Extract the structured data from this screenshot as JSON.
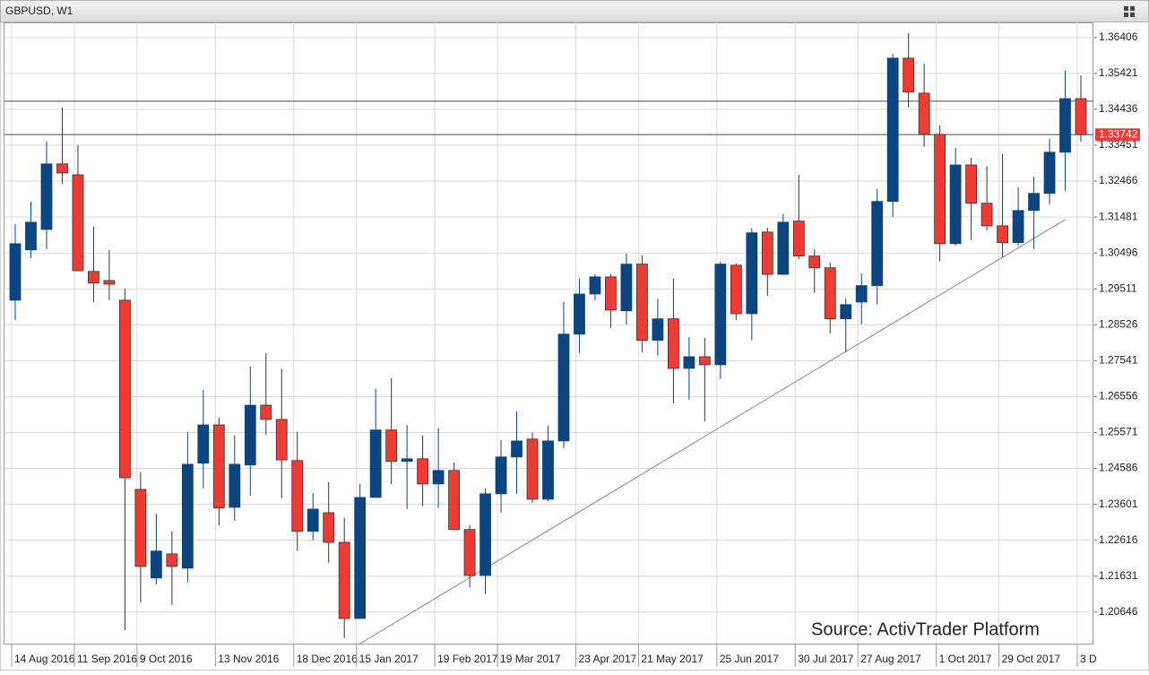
{
  "chart_data": {
    "type": "candlestick",
    "title": "GBPUSD, W1",
    "annotation": "Source: ActivTrader Platform",
    "categories": [
      "14 Aug 2016",
      null,
      null,
      null,
      "11 Sep 2016",
      null,
      null,
      null,
      "9 Oct 2016",
      null,
      null,
      null,
      null,
      "13 Nov 2016",
      null,
      null,
      null,
      null,
      "18 Dec 2016",
      null,
      null,
      null,
      "15 Jan 2017",
      null,
      null,
      null,
      null,
      "19 Feb 2017",
      null,
      null,
      null,
      "19 Mar 2017",
      null,
      null,
      null,
      null,
      "23 Apr 2017",
      null,
      null,
      null,
      "21 May 2017",
      null,
      null,
      null,
      null,
      "25 Jun 2017",
      null,
      null,
      null,
      null,
      "30 Jul 2017",
      null,
      null,
      null,
      "27 Aug 2017",
      null,
      null,
      null,
      null,
      "1 Oct 2017",
      null,
      null,
      null,
      "29 Oct 2017",
      null,
      null,
      null,
      null,
      "3 D"
    ],
    "open": [
      1.292,
      1.3058,
      1.3114,
      1.3294,
      1.3264,
      1.2999,
      1.2974,
      1.292,
      1.2401,
      1.2158,
      1.2224,
      1.2185,
      1.2473,
      1.2578,
      1.2352,
      1.2468,
      1.2632,
      1.2593,
      1.248,
      1.2286,
      1.2337,
      1.2256,
      1.2047,
      1.2379,
      1.2564,
      1.2478,
      1.2485,
      1.2416,
      1.2453,
      1.2291,
      1.2165,
      1.2389,
      1.249,
      1.2539,
      1.2374,
      1.2534,
      1.2827,
      1.2937,
      1.2984,
      1.2891,
      1.3019,
      1.281,
      1.2869,
      1.2733,
      1.2765,
      1.2743,
      1.3016,
      1.2883,
      1.3107,
      1.2991,
      1.3137,
      1.3041,
      1.3009,
      1.2869,
      1.2915,
      1.296,
      1.3191,
      1.3584,
      1.3488,
      1.3375,
      1.3075,
      1.3291,
      1.3186,
      1.3124,
      1.3078,
      1.3166,
      1.3213,
      1.3326,
      1.3473
    ],
    "high": [
      1.3129,
      1.3191,
      1.3355,
      1.3449,
      1.3346,
      1.3122,
      1.3058,
      1.2952,
      1.2448,
      1.2335,
      1.2286,
      1.2559,
      1.2674,
      1.2598,
      1.2549,
      1.2738,
      1.2775,
      1.2731,
      1.2559,
      1.2391,
      1.2421,
      1.2323,
      1.2416,
      1.2677,
      1.2706,
      1.2578,
      1.2549,
      1.2569,
      1.2475,
      1.2303,
      1.2404,
      1.2537,
      1.2615,
      1.2556,
      1.2576,
      1.2915,
      1.2979,
      1.2991,
      1.2991,
      1.3048,
      1.3043,
      1.2923,
      1.2979,
      1.2819,
      1.2817,
      1.3026,
      1.3021,
      1.3117,
      1.3119,
      1.3156,
      1.3264,
      1.306,
      1.3023,
      1.2925,
      1.2994,
      1.3225,
      1.3596,
      1.3653,
      1.3569,
      1.34,
      1.3338,
      1.3311,
      1.3287,
      1.3321,
      1.323,
      1.3259,
      1.3363,
      1.355,
      1.3537
    ],
    "low": [
      1.2866,
      1.3036,
      1.306,
      1.324,
      1.3001,
      1.2915,
      1.292,
      1.2015,
      1.2091,
      1.2141,
      1.2084,
      1.2146,
      1.2404,
      1.2303,
      1.2315,
      1.2384,
      1.2551,
      1.2377,
      1.2232,
      1.2261,
      1.22,
      1.1993,
      1.2047,
      1.2379,
      1.2416,
      1.2347,
      1.2355,
      1.235,
      1.2291,
      1.2133,
      1.2114,
      1.2337,
      1.2389,
      1.2364,
      1.2369,
      1.2514,
      1.2775,
      1.292,
      1.2844,
      1.2854,
      1.2778,
      1.2768,
      1.2637,
      1.2647,
      1.2588,
      1.2704,
      1.2866,
      1.281,
      1.2932,
      1.2989,
      1.3033,
      1.294,
      1.2829,
      1.2778,
      1.2854,
      1.2908,
      1.3149,
      1.3449,
      1.3341,
      1.3026,
      1.307,
      1.3085,
      1.3112,
      1.3038,
      1.307,
      1.306,
      1.3183,
      1.322,
      1.3355
    ],
    "close": [
      1.3075,
      1.3134,
      1.3294,
      1.3269,
      1.3001,
      1.2967,
      1.2964,
      1.2433,
      1.219,
      1.2232,
      1.219,
      1.247,
      1.2578,
      1.235,
      1.247,
      1.2632,
      1.2593,
      1.2482,
      1.2286,
      1.2347,
      1.2256,
      1.2047,
      1.2379,
      1.2564,
      1.2478,
      1.2485,
      1.2416,
      1.2453,
      1.2291,
      1.2165,
      1.2389,
      1.249,
      1.2534,
      1.2374,
      1.2534,
      1.2827,
      1.2937,
      1.2984,
      1.2893,
      1.3019,
      1.281,
      1.2869,
      1.2733,
      1.2765,
      1.2743,
      1.3019,
      1.2883,
      1.3105,
      1.2991,
      1.3134,
      1.3041,
      1.3009,
      1.2869,
      1.2908,
      1.296,
      1.3191,
      1.3584,
      1.3491,
      1.3375,
      1.3075,
      1.3291,
      1.3186,
      1.3124,
      1.3078,
      1.3166,
      1.3213,
      1.3326,
      1.3473,
      1.33742
    ],
    "up_color": "#0d4580",
    "down_color": "#ef3b33",
    "ylim": [
      1.1978,
      1.3682
    ],
    "yticks": [
      1.36406,
      1.35421,
      1.34436,
      1.33451,
      1.32466,
      1.31481,
      1.30496,
      1.29511,
      1.28526,
      1.27541,
      1.26556,
      1.25571,
      1.24586,
      1.23601,
      1.22616,
      1.21631,
      1.20646
    ],
    "grid": true,
    "current_price": 1.33742,
    "hlines": [
      1.3466
    ],
    "trendline": [
      {
        "index": 22,
        "value": 1.1978
      },
      {
        "index": 67,
        "value": 1.3141
      }
    ]
  }
}
